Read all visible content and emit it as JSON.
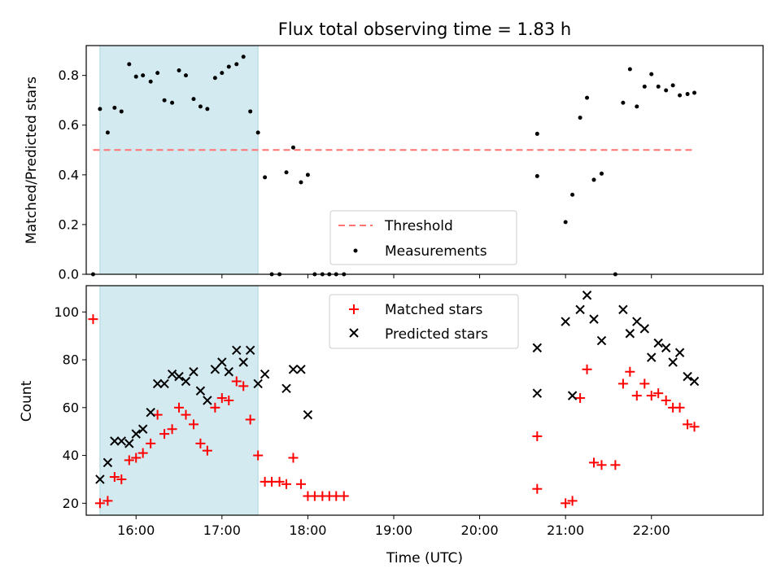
{
  "chart_data": [
    {
      "type": "scatter",
      "title": "Flux total observing time = 1.83 h",
      "ylabel": "Matched/Predicted stars",
      "xlabel": "",
      "xlim": [
        15.42,
        23.3
      ],
      "ylim": [
        0,
        0.92
      ],
      "yticks": [
        0.0,
        0.2,
        0.4,
        0.6,
        0.8
      ],
      "ytick_labels": [
        "0.0",
        "0.2",
        "0.4",
        "0.6",
        "0.8"
      ],
      "xticks": [
        16,
        17,
        18,
        19,
        20,
        21,
        22
      ],
      "highlight_span": [
        15.58,
        17.42
      ],
      "highlight_color": "#d3eaf1",
      "threshold": {
        "name": "Threshold",
        "y": 0.5,
        "x": [
          15.5,
          22.5
        ],
        "color": "#ff7373"
      },
      "legend": {
        "placement": "lower-center"
      },
      "series": [
        {
          "name": "Measurements",
          "color": "#000000",
          "marker": "dot",
          "x": [
            15.5,
            15.58,
            15.67,
            15.75,
            15.83,
            15.92,
            16.0,
            16.08,
            16.17,
            16.25,
            16.33,
            16.42,
            16.5,
            16.58,
            16.67,
            16.75,
            16.83,
            16.92,
            17.0,
            17.08,
            17.17,
            17.25,
            17.33,
            17.42,
            17.5,
            17.58,
            17.67,
            17.75,
            17.83,
            17.92,
            18.0,
            18.08,
            18.17,
            18.25,
            18.33,
            18.42,
            20.67,
            20.67,
            21.0,
            21.08,
            21.17,
            21.25,
            21.33,
            21.42,
            21.58,
            21.67,
            21.75,
            21.83,
            21.92,
            22.0,
            22.08,
            22.17,
            22.25,
            22.33,
            22.42,
            22.5
          ],
          "y": [
            0.0,
            0.665,
            0.57,
            0.67,
            0.655,
            0.845,
            0.795,
            0.8,
            0.775,
            0.81,
            0.7,
            0.69,
            0.82,
            0.8,
            0.705,
            0.675,
            0.665,
            0.79,
            0.81,
            0.835,
            0.845,
            0.875,
            0.655,
            0.57,
            0.39,
            0.0,
            0.0,
            0.41,
            0.51,
            0.37,
            0.4,
            0.0,
            0.0,
            0.0,
            0.0,
            0.0,
            0.395,
            0.565,
            0.21,
            0.32,
            0.63,
            0.71,
            0.38,
            0.405,
            0.0,
            0.69,
            0.825,
            0.675,
            0.755,
            0.805,
            0.755,
            0.74,
            0.76,
            0.72,
            0.725,
            0.73
          ]
        }
      ]
    },
    {
      "type": "scatter",
      "title": "",
      "xlabel": "Time (UTC)",
      "ylabel": "Count",
      "xlim": [
        15.42,
        23.3
      ],
      "ylim": [
        15,
        111
      ],
      "yticks": [
        20,
        40,
        60,
        80,
        100
      ],
      "ytick_labels": [
        "20",
        "40",
        "60",
        "80",
        "100"
      ],
      "xticks": [
        16,
        17,
        18,
        19,
        20,
        21,
        22
      ],
      "xtick_labels": [
        "16:00",
        "17:00",
        "18:00",
        "19:00",
        "20:00",
        "21:00",
        "22:00"
      ],
      "highlight_span": [
        15.58,
        17.42
      ],
      "highlight_color": "#d3eaf1",
      "legend": {
        "placement": "upper-center"
      },
      "series": [
        {
          "name": "Matched stars",
          "color": "#ff0000",
          "marker": "plus",
          "x": [
            15.5,
            15.58,
            15.67,
            15.75,
            15.83,
            15.92,
            16.0,
            16.08,
            16.17,
            16.25,
            16.33,
            16.42,
            16.5,
            16.58,
            16.67,
            16.75,
            16.83,
            16.92,
            17.0,
            17.08,
            17.17,
            17.25,
            17.33,
            17.42,
            17.5,
            17.58,
            17.67,
            17.75,
            17.83,
            17.92,
            18.0,
            18.08,
            18.17,
            18.25,
            18.33,
            18.42,
            20.67,
            20.67,
            21.0,
            21.08,
            21.17,
            21.25,
            21.33,
            21.42,
            21.58,
            21.67,
            21.75,
            21.83,
            21.92,
            22.0,
            22.08,
            22.17,
            22.25,
            22.33,
            22.42,
            22.5
          ],
          "y": [
            97,
            20,
            21,
            31,
            30,
            38,
            39,
            41,
            45,
            57,
            49,
            51,
            60,
            57,
            53,
            45,
            42,
            60,
            64,
            63,
            71,
            69,
            55,
            40,
            29,
            29,
            29,
            28,
            39,
            28,
            23,
            23,
            23,
            23,
            23,
            23,
            26,
            48,
            20,
            21,
            64,
            76,
            37,
            36,
            36,
            70,
            75,
            65,
            70,
            65,
            66,
            63,
            60,
            60,
            53,
            52
          ]
        },
        {
          "name": "Predicted stars",
          "color": "#000000",
          "marker": "x",
          "x": [
            15.58,
            15.67,
            15.75,
            15.83,
            15.92,
            16.0,
            16.08,
            16.17,
            16.25,
            16.33,
            16.42,
            16.5,
            16.58,
            16.67,
            16.75,
            16.83,
            16.92,
            17.0,
            17.08,
            17.17,
            17.25,
            17.33,
            17.42,
            17.5,
            17.75,
            17.83,
            17.92,
            18.0,
            20.67,
            20.67,
            21.0,
            21.08,
            21.17,
            21.25,
            21.33,
            21.42,
            21.67,
            21.75,
            21.83,
            21.92,
            22.0,
            22.08,
            22.17,
            22.25,
            22.33,
            22.42,
            22.5
          ],
          "y": [
            30,
            37,
            46,
            46,
            45,
            49,
            51,
            58,
            70,
            70,
            74,
            73,
            71,
            75,
            67,
            63,
            76,
            79,
            75,
            84,
            79,
            84,
            70,
            74,
            68,
            76,
            76,
            57,
            66,
            85,
            96,
            65,
            101,
            107,
            97,
            88,
            101,
            91,
            96,
            93,
            81,
            87,
            85,
            79,
            83,
            73,
            71
          ]
        }
      ]
    }
  ]
}
